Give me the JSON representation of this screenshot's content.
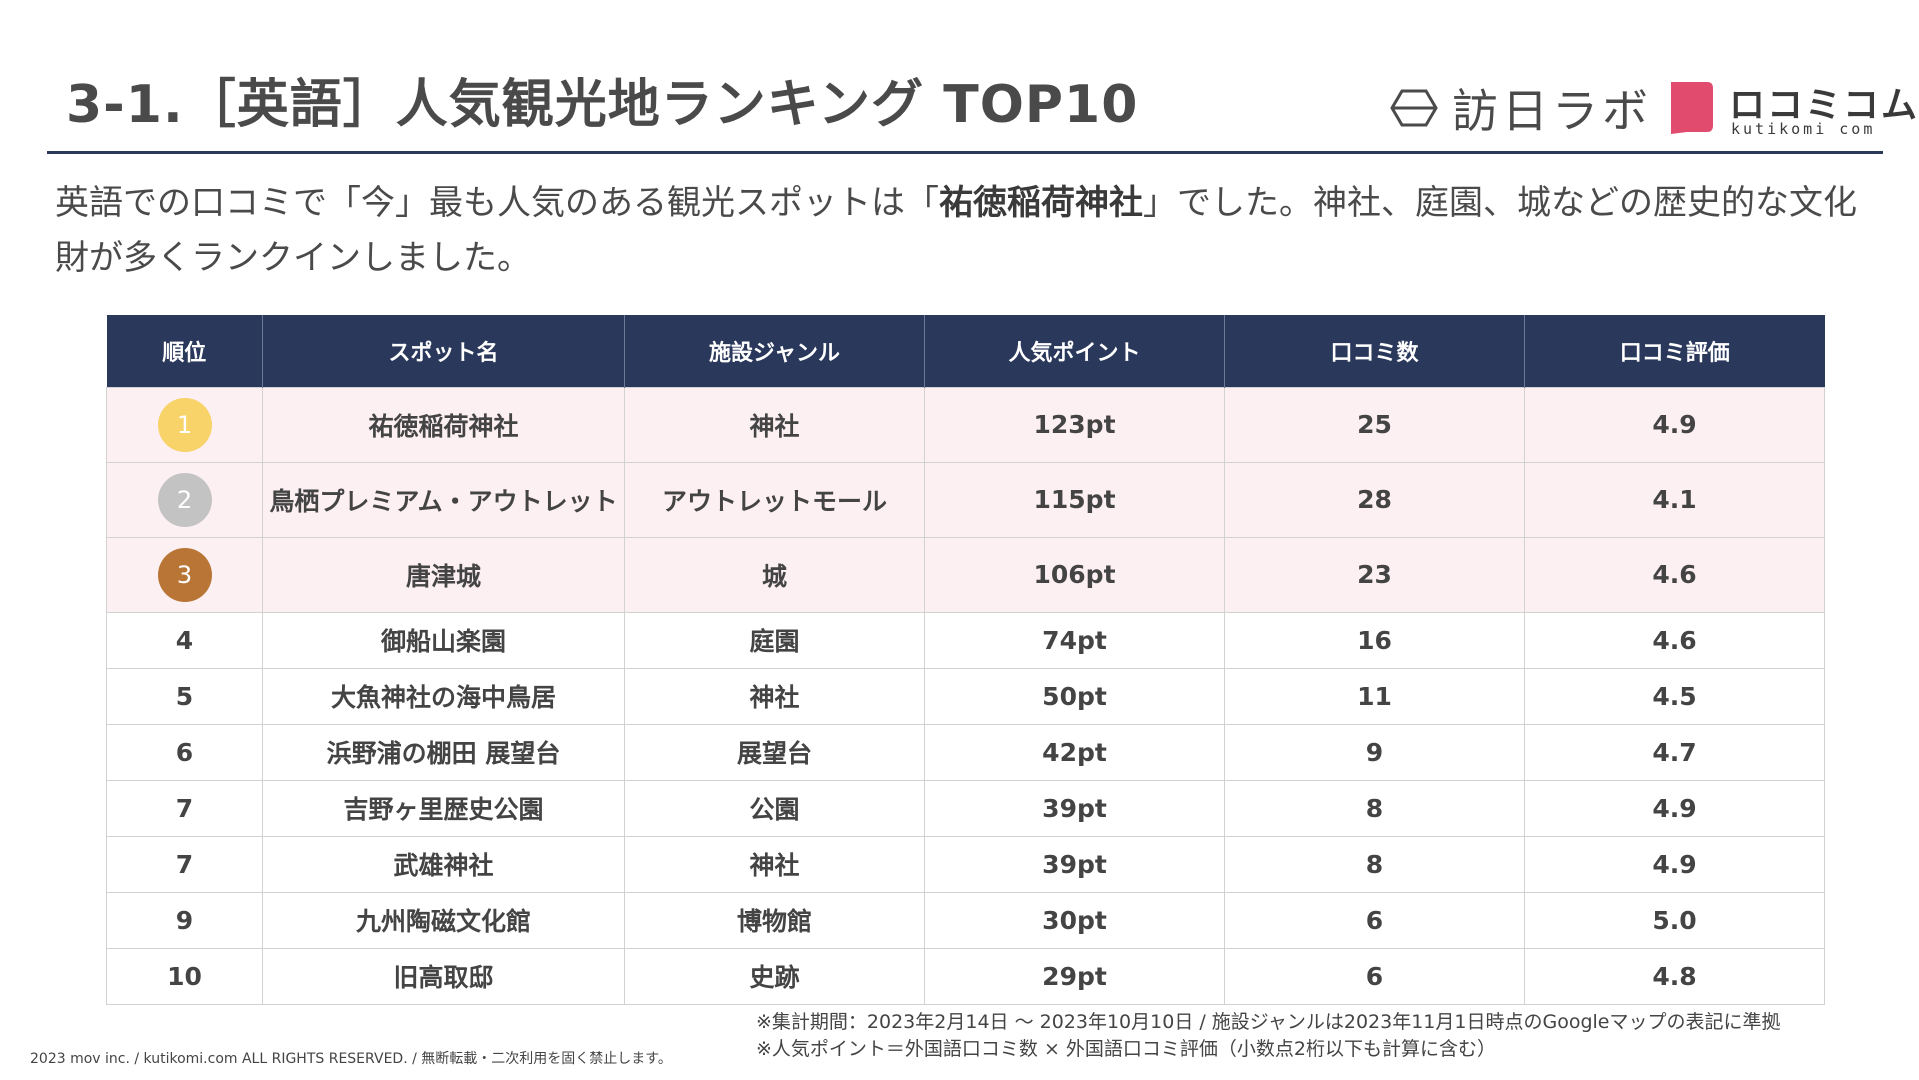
{
  "header": {
    "title": "3-1.［英語］人気観光地ランキング TOP10",
    "logo_houjin_text": "訪日ラボ",
    "logo_kutikomi_kana": "ロコミコム",
    "logo_kutikomi_roman": "kutikomi com"
  },
  "description": {
    "part1": "英語での口コミで「今」最も人気のある観光スポットは「",
    "highlight": "祐徳稲荷神社",
    "part2": "」でした。神社、庭園、城などの歴史的な文化財が多くランクインしました。"
  },
  "table": {
    "headers": [
      "順位",
      "スポット名",
      "施設ジャンル",
      "人気ポイント",
      "口コミ数",
      "口コミ評価"
    ],
    "rows": [
      {
        "rank": "1",
        "spot": "祐徳稲荷神社",
        "genre": "神社",
        "points": "123pt",
        "reviews": "25",
        "rating": "4.9"
      },
      {
        "rank": "2",
        "spot": "鳥栖プレミアム・アウトレット",
        "genre": "アウトレットモール",
        "points": "115pt",
        "reviews": "28",
        "rating": "4.1"
      },
      {
        "rank": "3",
        "spot": "唐津城",
        "genre": "城",
        "points": "106pt",
        "reviews": "23",
        "rating": "4.6"
      },
      {
        "rank": "4",
        "spot": "御船山楽園",
        "genre": "庭園",
        "points": "74pt",
        "reviews": "16",
        "rating": "4.6"
      },
      {
        "rank": "5",
        "spot": "大魚神社の海中鳥居",
        "genre": "神社",
        "points": "50pt",
        "reviews": "11",
        "rating": "4.5"
      },
      {
        "rank": "6",
        "spot": "浜野浦の棚田 展望台",
        "genre": "展望台",
        "points": "42pt",
        "reviews": "9",
        "rating": "4.7"
      },
      {
        "rank": "7",
        "spot": "吉野ヶ里歴史公園",
        "genre": "公園",
        "points": "39pt",
        "reviews": "8",
        "rating": "4.9"
      },
      {
        "rank": "7",
        "spot": "武雄神社",
        "genre": "神社",
        "points": "39pt",
        "reviews": "8",
        "rating": "4.9"
      },
      {
        "rank": "9",
        "spot": "九州陶磁文化館",
        "genre": "博物館",
        "points": "30pt",
        "reviews": "6",
        "rating": "5.0"
      },
      {
        "rank": "10",
        "spot": "旧高取邸",
        "genre": "史跡",
        "points": "29pt",
        "reviews": "6",
        "rating": "4.8"
      }
    ],
    "medal_colors": [
      "#f7d36a",
      "#c3c3c3",
      "#b97536"
    ]
  },
  "notes": {
    "line1": "※集計期間：2023年2月14日 〜 2023年10月10日 / 施設ジャンルは2023年11月1日時点のGoogleマップの表記に準拠",
    "line2": "※人気ポイント＝外国語口コミ数 × 外国語口コミ評価（小数点2桁以下も計算に含む）"
  },
  "footer": {
    "copyright": "2023 mov inc. / kutikomi.com ALL RIGHTS RESERVED. / 無断転載・二次利用を固く禁止します。"
  },
  "colors": {
    "header_bg": "#2a385c",
    "top3_row_bg": "#fdf0f3",
    "logo_mark": "#e14b6e"
  }
}
